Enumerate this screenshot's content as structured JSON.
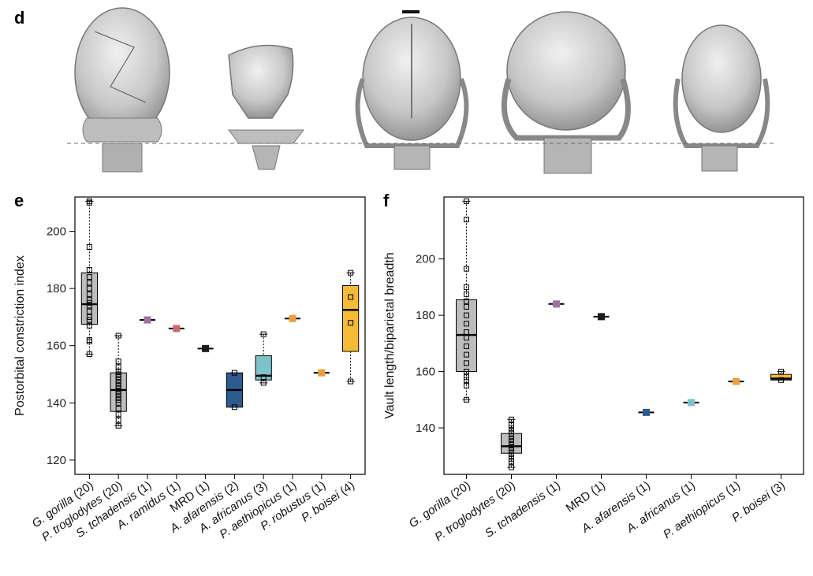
{
  "panels": {
    "d": "d",
    "e": "e",
    "f": "f"
  },
  "colors": {
    "gray": "#bdbdbd",
    "purple": "#a0739c",
    "rose": "#c46b72",
    "black": "#1a1a1a",
    "blue": "#2c5c8f",
    "teal": "#7cc3cc",
    "orange": "#e8a03c",
    "yellow": "#f5bb35",
    "skull": "#c9c9c9"
  },
  "chart_data": [
    {
      "type": "box",
      "panel": "e",
      "ylabel": "Postorbital constriction index",
      "ylim": [
        115,
        212
      ],
      "yticks": [
        120,
        140,
        160,
        180,
        200
      ],
      "categories": [
        {
          "pre": "",
          "it": "G. gorilla",
          "post": " (20)"
        },
        {
          "pre": "",
          "it": "P. troglodytes",
          "post": " (20)"
        },
        {
          "pre": "",
          "it": "S. tchadensis",
          "post": " (1)"
        },
        {
          "pre": "",
          "it": "A. ramidus",
          "post": " (1)"
        },
        {
          "pre": "MRD (1)",
          "it": "",
          "post": ""
        },
        {
          "pre": "",
          "it": "A. afarensis",
          "post": " (2)"
        },
        {
          "pre": "",
          "it": "A. africanus",
          "post": " (3)"
        },
        {
          "pre": "",
          "it": "P. aethiopicus",
          "post": " (1)"
        },
        {
          "pre": "",
          "it": "P. robustus",
          "post": " (1)"
        },
        {
          "pre": "",
          "it": "P. boisei",
          "post": " (4)"
        }
      ],
      "groups": [
        {
          "kind": "box",
          "color": "gray",
          "min": 157,
          "q1": 167.5,
          "median": 174.5,
          "q3": 185.5,
          "max": 210.5,
          "points": [
            157,
            161.5,
            162,
            167,
            169,
            170,
            172,
            174,
            175,
            176,
            178,
            180,
            182,
            184,
            186.5,
            194.5,
            210,
            210.5
          ]
        },
        {
          "kind": "box",
          "color": "gray",
          "min": 132,
          "q1": 137,
          "median": 144.5,
          "q3": 150.5,
          "max": 163.5,
          "points": [
            132,
            134,
            136,
            138,
            140,
            141,
            142,
            143,
            144,
            145,
            146,
            147,
            148,
            149,
            150,
            151,
            152.5,
            154.5,
            163.5
          ]
        },
        {
          "kind": "single",
          "color": "purple",
          "value": 169
        },
        {
          "kind": "single",
          "color": "rose",
          "value": 166
        },
        {
          "kind": "single",
          "color": "black",
          "value": 159
        },
        {
          "kind": "box",
          "color": "blue",
          "min": 138.5,
          "q1": 138.5,
          "median": 144.5,
          "q3": 150.5,
          "max": 150.5,
          "points": [
            138.5,
            150.5
          ]
        },
        {
          "kind": "box",
          "color": "teal",
          "min": 147,
          "q1": 148,
          "median": 149.5,
          "q3": 156.5,
          "max": 164,
          "points": [
            147,
            149,
            164
          ]
        },
        {
          "kind": "single",
          "color": "orange",
          "value": 169.5
        },
        {
          "kind": "single",
          "color": "orange",
          "value": 150.5
        },
        {
          "kind": "box",
          "color": "yellow",
          "min": 147.5,
          "q1": 158,
          "median": 172.5,
          "q3": 181,
          "max": 185.5,
          "points": [
            147.5,
            168,
            177,
            185.5
          ]
        }
      ]
    },
    {
      "type": "box",
      "panel": "f",
      "ylabel": "Vault length/biparietal breadth",
      "ylim": [
        123.5,
        222
      ],
      "yticks": [
        140,
        160,
        180,
        200
      ],
      "categories": [
        {
          "pre": "",
          "it": "G. gorilla",
          "post": " (20)"
        },
        {
          "pre": "",
          "it": "P. troglodytes",
          "post": " (20)"
        },
        {
          "pre": "",
          "it": "S. tchadensis",
          "post": " (1)"
        },
        {
          "pre": "MRD (1)",
          "it": "",
          "post": ""
        },
        {
          "pre": "",
          "it": "A. afarensis",
          "post": " (1)"
        },
        {
          "pre": "",
          "it": "A. africanus",
          "post": " (1)"
        },
        {
          "pre": "",
          "it": "P. aethiopicus",
          "post": " (1)"
        },
        {
          "pre": "",
          "it": "P. boisei",
          "post": " (3)"
        }
      ],
      "groups": [
        {
          "kind": "box",
          "color": "gray",
          "min": 150,
          "q1": 160,
          "median": 173,
          "q3": 185.5,
          "max": 220.5,
          "points": [
            150,
            155,
            157,
            158,
            160,
            163,
            166,
            169,
            172,
            174,
            177,
            180,
            183,
            185,
            187.5,
            190,
            196.5,
            214,
            220.5
          ]
        },
        {
          "kind": "box",
          "color": "gray",
          "min": 126,
          "q1": 131,
          "median": 133.5,
          "q3": 138,
          "max": 143,
          "points": [
            126,
            128,
            129,
            130,
            131,
            132,
            133,
            134,
            135,
            136,
            137,
            138,
            139,
            140,
            141,
            143
          ]
        },
        {
          "kind": "single",
          "color": "purple",
          "value": 184
        },
        {
          "kind": "single",
          "color": "black",
          "value": 179.5
        },
        {
          "kind": "single",
          "color": "blue",
          "value": 145.5
        },
        {
          "kind": "single",
          "color": "teal",
          "value": 149
        },
        {
          "kind": "single",
          "color": "orange",
          "value": 156.5
        },
        {
          "kind": "box",
          "color": "yellow",
          "min": 157,
          "q1": 157,
          "median": 157.5,
          "q3": 159,
          "max": 160,
          "points": [
            157,
            160
          ]
        }
      ]
    }
  ]
}
